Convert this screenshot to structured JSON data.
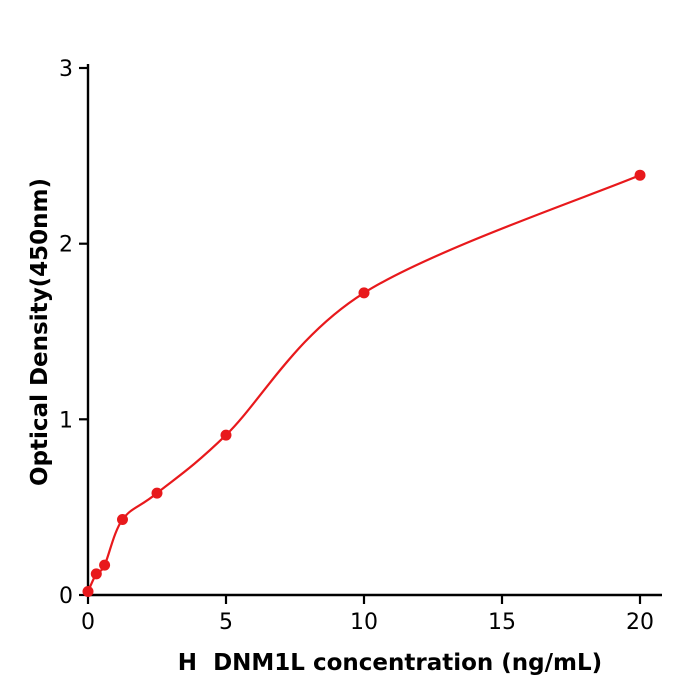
{
  "chart_data": {
    "type": "scatter",
    "title": "",
    "xlabel": "H  DNM1L concentration (ng/mL)",
    "ylabel": "Optical Density(450nm)",
    "x": [
      0,
      0.3,
      0.6,
      1.25,
      2.5,
      5,
      10,
      20
    ],
    "y": [
      0.02,
      0.12,
      0.17,
      0.43,
      0.58,
      0.91,
      1.72,
      2.39
    ],
    "fit_line": "smooth saturating dose-response curve through points",
    "xlim": [
      0,
      20.8
    ],
    "ylim": [
      0,
      3
    ],
    "xticks": [
      0,
      5,
      10,
      15,
      20
    ],
    "yticks": [
      0,
      1,
      2,
      3
    ],
    "grid": false,
    "legend": "none",
    "point_color": "#e8191c",
    "line_color": "#e8191c",
    "axis_color": "#000000"
  }
}
